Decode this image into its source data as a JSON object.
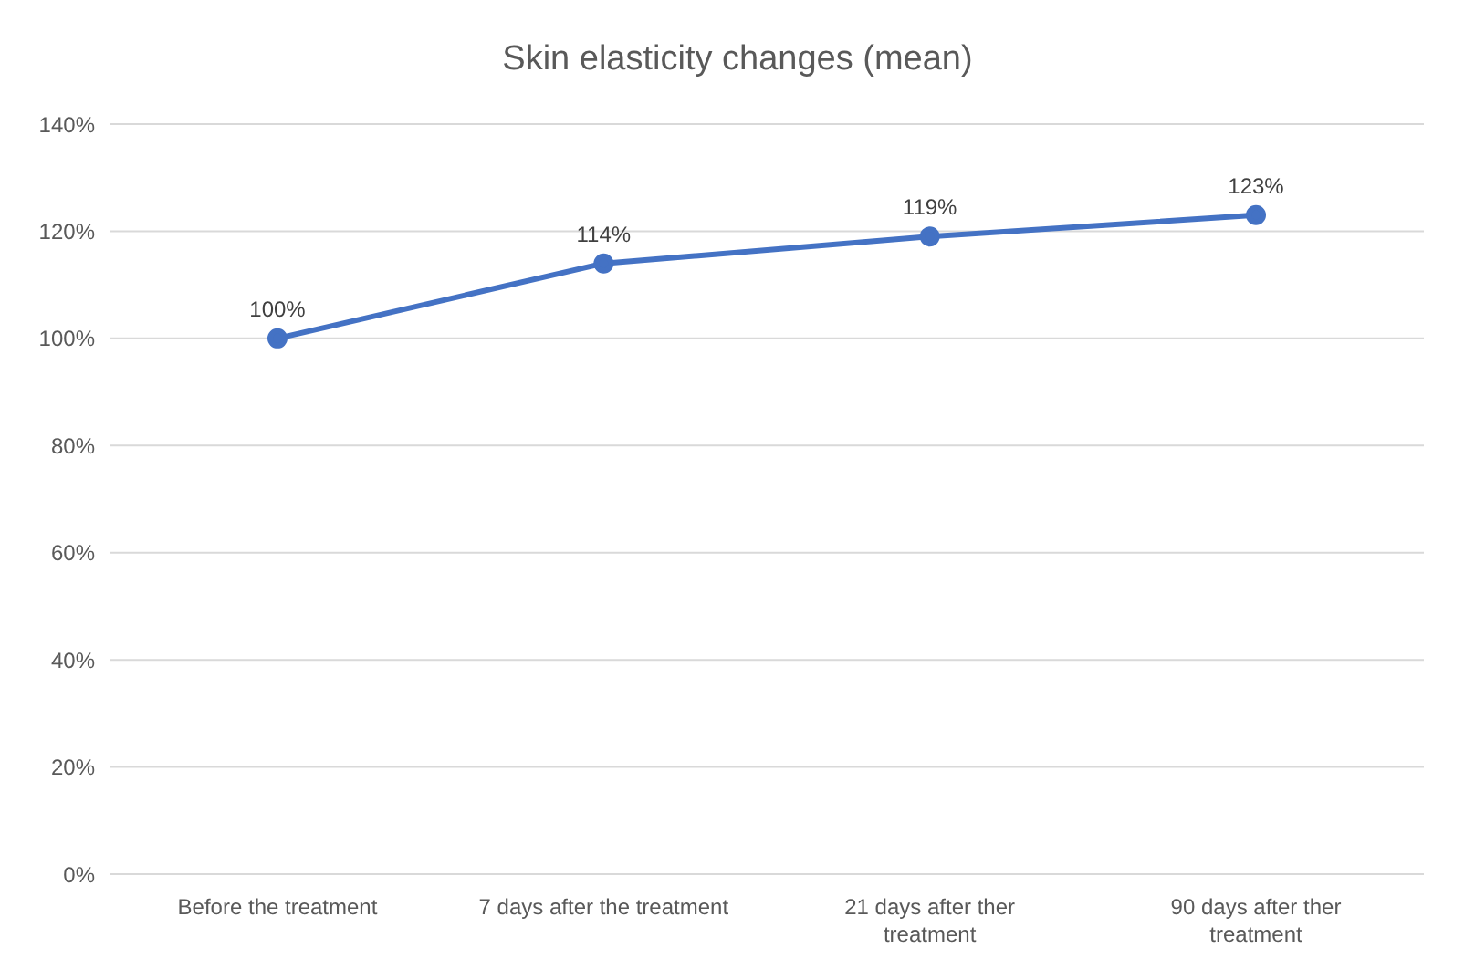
{
  "chart_data": {
    "type": "line",
    "title": "Skin elasticity changes (mean)",
    "categories": [
      "Before the treatment",
      "7 days after the treatment",
      "21 days after ther treatment",
      "90 days after ther treatment"
    ],
    "series": [
      {
        "color": "#4472c4",
        "values": [
          100,
          114,
          119,
          123
        ],
        "value_labels": [
          "100%",
          "114%",
          "119%",
          "123%"
        ]
      }
    ],
    "ylim": [
      0,
      140
    ],
    "yticks": [
      {
        "value": 0,
        "label": "0%"
      },
      {
        "value": 20,
        "label": "20%"
      },
      {
        "value": 40,
        "label": "40%"
      },
      {
        "value": 60,
        "label": "60%"
      },
      {
        "value": 80,
        "label": "80%"
      },
      {
        "value": 100,
        "label": "100%"
      },
      {
        "value": 120,
        "label": "120%"
      },
      {
        "value": 140,
        "label": "140%"
      }
    ],
    "grid": "y",
    "legend": false,
    "marker": "circle",
    "line_style": "solid"
  }
}
